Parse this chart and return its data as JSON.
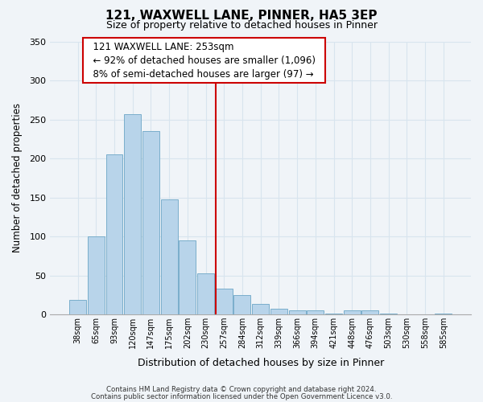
{
  "title": "121, WAXWELL LANE, PINNER, HA5 3EP",
  "subtitle": "Size of property relative to detached houses in Pinner",
  "xlabel": "Distribution of detached houses by size in Pinner",
  "ylabel": "Number of detached properties",
  "bar_labels": [
    "38sqm",
    "65sqm",
    "93sqm",
    "120sqm",
    "147sqm",
    "175sqm",
    "202sqm",
    "230sqm",
    "257sqm",
    "284sqm",
    "312sqm",
    "339sqm",
    "366sqm",
    "394sqm",
    "421sqm",
    "448sqm",
    "476sqm",
    "503sqm",
    "530sqm",
    "558sqm",
    "585sqm"
  ],
  "bar_values": [
    19,
    100,
    205,
    257,
    235,
    148,
    95,
    53,
    33,
    25,
    14,
    7,
    5,
    5,
    1,
    5,
    5,
    1,
    0,
    0,
    1
  ],
  "bar_color": "#b8d4ea",
  "bar_edge_color": "#7aaecb",
  "vline_color": "#cc0000",
  "annotation_title": "121 WAXWELL LANE: 253sqm",
  "annotation_line1": "← 92% of detached houses are smaller (1,096)",
  "annotation_line2": "8% of semi-detached houses are larger (97) →",
  "annotation_box_color": "#ffffff",
  "annotation_box_edge": "#cc0000",
  "ylim": [
    0,
    350
  ],
  "yticks": [
    0,
    50,
    100,
    150,
    200,
    250,
    300,
    350
  ],
  "footer1": "Contains HM Land Registry data © Crown copyright and database right 2024.",
  "footer2": "Contains public sector information licensed under the Open Government Licence v3.0.",
  "bg_color": "#f0f4f8",
  "grid_color": "#d8e4ee"
}
